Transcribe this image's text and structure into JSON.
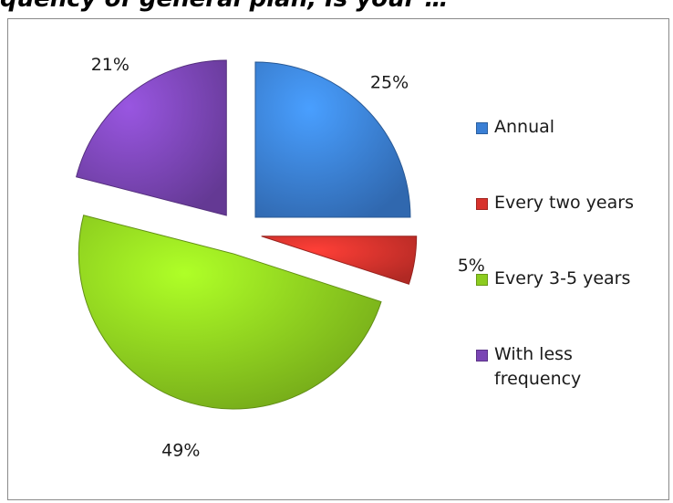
{
  "title": "quency of general plan, Is your …",
  "chart_data": {
    "type": "pie",
    "series": [
      {
        "name": "Annual",
        "value": 25,
        "label": "25%",
        "color": "#3a7fd5"
      },
      {
        "name": "Every two years",
        "value": 5,
        "label": "5%",
        "color": "#d8322c"
      },
      {
        "name": "Every 3-5 years",
        "value": 49,
        "label": "49%",
        "color": "#8ccc1f"
      },
      {
        "name": "With less frequency",
        "value": 21,
        "label": "21%",
        "color": "#7a45b4"
      }
    ],
    "legend_position": "right",
    "exploded": true
  },
  "legend": [
    {
      "line1": "Annual",
      "line2": ""
    },
    {
      "line1": "Every two years",
      "line2": ""
    },
    {
      "line1": "Every 3-5 years",
      "line2": ""
    },
    {
      "line1": "With less",
      "line2": "frequency"
    }
  ]
}
